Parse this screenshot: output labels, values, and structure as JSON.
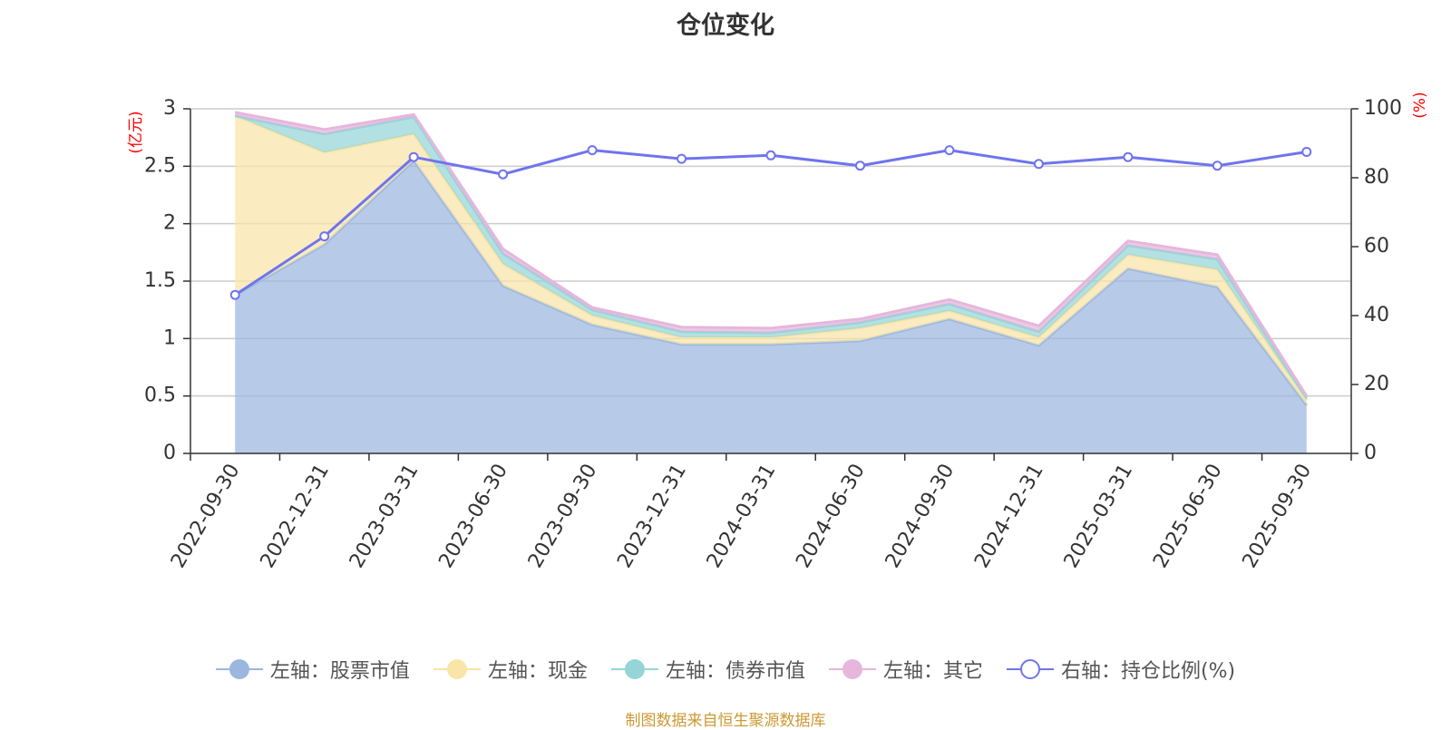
{
  "chart_data": {
    "type": "area",
    "title": "仓位变化",
    "categories": [
      "2022-09-30",
      "2022-12-31",
      "2023-03-31",
      "2023-06-30",
      "2023-09-30",
      "2023-12-31",
      "2024-03-31",
      "2024-06-30",
      "2024-09-30",
      "2024-12-31",
      "2025-03-31",
      "2025-06-30",
      "2025-09-30"
    ],
    "left_axis": {
      "label": "(亿元)",
      "range": [
        0,
        3
      ],
      "ticks": [
        "0",
        "0.5",
        "1",
        "1.5",
        "2",
        "2.5",
        "3"
      ]
    },
    "right_axis": {
      "label": "(%)",
      "range": [
        0,
        100
      ],
      "ticks": [
        "0",
        "20",
        "40",
        "60",
        "80",
        "100"
      ]
    },
    "series": [
      {
        "name": "左轴：股票市值",
        "axis": "left",
        "stacked": true,
        "color": "#9bb7e0",
        "values": [
          1.38,
          1.82,
          2.55,
          1.46,
          1.12,
          0.95,
          0.95,
          0.98,
          1.17,
          0.94,
          1.61,
          1.45,
          0.42
        ]
      },
      {
        "name": "左轴：现金",
        "axis": "left",
        "stacked": true,
        "color": "#f8e5a7",
        "values": [
          1.56,
          0.8,
          0.23,
          0.19,
          0.08,
          0.06,
          0.06,
          0.11,
          0.07,
          0.07,
          0.12,
          0.15,
          0.04
        ]
      },
      {
        "name": "左轴：债券市值",
        "axis": "left",
        "stacked": true,
        "color": "#95d5d8",
        "values": [
          0.0,
          0.16,
          0.15,
          0.09,
          0.05,
          0.05,
          0.04,
          0.05,
          0.06,
          0.05,
          0.08,
          0.09,
          0.02
        ]
      },
      {
        "name": "左轴：其它",
        "axis": "left",
        "stacked": true,
        "color": "#e6b6dc",
        "values": [
          0.03,
          0.04,
          0.02,
          0.04,
          0.02,
          0.04,
          0.04,
          0.03,
          0.04,
          0.05,
          0.04,
          0.04,
          0.02
        ]
      },
      {
        "name": "右轴：持仓比例(%)",
        "axis": "right",
        "stacked": false,
        "color": "#6f74ee",
        "values": [
          46,
          63,
          86,
          81,
          88,
          85.5,
          86.5,
          83.5,
          88,
          84,
          86,
          83.5,
          87.5
        ]
      }
    ],
    "legend_position": "bottom",
    "grid": true
  },
  "source_note": "制图数据来自恒生聚源数据库"
}
